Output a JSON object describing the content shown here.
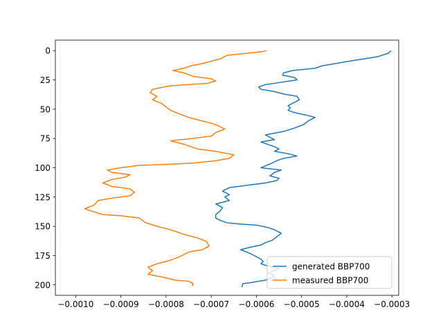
{
  "chart_data": {
    "type": "line",
    "title": "",
    "xlabel": "",
    "ylabel": "",
    "xlim": [
      -0.001045,
      -0.000285
    ],
    "ylim": [
      209,
      -9
    ],
    "y_inverted": true,
    "grid": false,
    "legend_position": "lower-right",
    "x_ticks": [
      -0.001,
      -0.0009,
      -0.0008,
      -0.0007,
      -0.0006,
      -0.0005,
      -0.0004,
      -0.0003
    ],
    "x_tick_labels": [
      "−0.0010",
      "−0.0009",
      "−0.0008",
      "−0.0007",
      "−0.0006",
      "−0.0005",
      "−0.0004",
      "−0.0003"
    ],
    "y_ticks": [
      0,
      25,
      50,
      75,
      100,
      125,
      150,
      175,
      200
    ],
    "y_tick_labels": [
      "0",
      "25",
      "50",
      "75",
      "100",
      "125",
      "150",
      "175",
      "200"
    ],
    "series": [
      {
        "name": "generated BBP700",
        "color": "#1f77b4",
        "points": [
          [
            -0.000302,
            0
          ],
          [
            -0.000307,
            2
          ],
          [
            -0.00033,
            5
          ],
          [
            -0.000362,
            7
          ],
          [
            -0.000395,
            9
          ],
          [
            -0.000425,
            11
          ],
          [
            -0.000455,
            13
          ],
          [
            -0.00047,
            15
          ],
          [
            -0.00052,
            17
          ],
          [
            -0.00054,
            19
          ],
          [
            -0.000542,
            21
          ],
          [
            -0.000515,
            23
          ],
          [
            -0.00051,
            25
          ],
          [
            -0.000545,
            27
          ],
          [
            -0.00058,
            29
          ],
          [
            -0.000595,
            31
          ],
          [
            -0.00059,
            33
          ],
          [
            -0.00056,
            35
          ],
          [
            -0.00054,
            37
          ],
          [
            -0.00051,
            39
          ],
          [
            -0.000505,
            42
          ],
          [
            -0.00052,
            45
          ],
          [
            -0.00053,
            47
          ],
          [
            -0.000525,
            49
          ],
          [
            -0.00053,
            51
          ],
          [
            -0.000515,
            53
          ],
          [
            -0.00049,
            55
          ],
          [
            -0.00047,
            57
          ],
          [
            -0.000485,
            60
          ],
          [
            -0.000495,
            63
          ],
          [
            -0.000515,
            66
          ],
          [
            -0.00054,
            69
          ],
          [
            -0.00058,
            72
          ],
          [
            -0.00056,
            76
          ],
          [
            -0.00059,
            78
          ],
          [
            -0.000575,
            80
          ],
          [
            -0.00056,
            82
          ],
          [
            -0.00055,
            84
          ],
          [
            -0.00056,
            86
          ],
          [
            -0.00053,
            88
          ],
          [
            -0.00051,
            90
          ],
          [
            -0.00054,
            92
          ],
          [
            -0.000555,
            94
          ],
          [
            -0.000565,
            96
          ],
          [
            -0.00059,
            100
          ],
          [
            -0.000545,
            102
          ],
          [
            -0.00056,
            104
          ],
          [
            -0.00057,
            107
          ],
          [
            -0.00055,
            109
          ],
          [
            -0.000555,
            111
          ],
          [
            -0.00058,
            113
          ],
          [
            -0.00062,
            115
          ],
          [
            -0.00066,
            117
          ],
          [
            -0.000675,
            120
          ],
          [
            -0.00066,
            123
          ],
          [
            -0.00067,
            125
          ],
          [
            -0.00066,
            128
          ],
          [
            -0.00069,
            131
          ],
          [
            -0.000675,
            134
          ],
          [
            -0.00068,
            137
          ],
          [
            -0.00069,
            140
          ],
          [
            -0.00069,
            143
          ],
          [
            -0.00068,
            145
          ],
          [
            -0.000665,
            147
          ],
          [
            -0.00064,
            148
          ],
          [
            -0.0006,
            149
          ],
          [
            -0.000575,
            151
          ],
          [
            -0.00056,
            153
          ],
          [
            -0.000545,
            156
          ],
          [
            -0.000555,
            159
          ],
          [
            -0.000565,
            162
          ],
          [
            -0.00058,
            164
          ],
          [
            -0.00059,
            166
          ],
          [
            -0.000615,
            168
          ],
          [
            -0.000635,
            170
          ],
          [
            -0.000615,
            173
          ],
          [
            -0.0006,
            176
          ],
          [
            -0.00059,
            178
          ],
          [
            -0.000585,
            180
          ],
          [
            -0.00059,
            182
          ],
          [
            -0.000575,
            184
          ],
          [
            -0.00055,
            186
          ],
          [
            -0.00056,
            188
          ],
          [
            -0.000575,
            190
          ],
          [
            -0.00056,
            192
          ],
          [
            -0.000565,
            194
          ],
          [
            -0.00058,
            196
          ],
          [
            -0.00061,
            198
          ],
          [
            -0.00063,
            199
          ],
          [
            -0.000632,
            202
          ]
        ]
      },
      {
        "name": "measured BBP700",
        "color": "#ff7f0e",
        "points": [
          [
            -0.000578,
            0
          ],
          [
            -0.00059,
            1
          ],
          [
            -0.000615,
            2
          ],
          [
            -0.000665,
            4
          ],
          [
            -0.00068,
            7
          ],
          [
            -0.0007,
            9
          ],
          [
            -0.00072,
            11
          ],
          [
            -0.000745,
            13
          ],
          [
            -0.00076,
            15
          ],
          [
            -0.000785,
            17
          ],
          [
            -0.00076,
            19
          ],
          [
            -0.00074,
            22
          ],
          [
            -0.0007,
            24
          ],
          [
            -0.00069,
            26
          ],
          [
            -0.00071,
            28
          ],
          [
            -0.00079,
            30
          ],
          [
            -0.00083,
            33
          ],
          [
            -0.000835,
            36
          ],
          [
            -0.00082,
            39
          ],
          [
            -0.00083,
            42
          ],
          [
            -0.00081,
            45
          ],
          [
            -0.0008,
            48
          ],
          [
            -0.00079,
            51
          ],
          [
            -0.00077,
            54
          ],
          [
            -0.00075,
            57
          ],
          [
            -0.00073,
            59
          ],
          [
            -0.0007,
            62
          ],
          [
            -0.000685,
            64
          ],
          [
            -0.00067,
            67
          ],
          [
            -0.00069,
            70
          ],
          [
            -0.0007,
            73
          ],
          [
            -0.00074,
            75
          ],
          [
            -0.00079,
            77
          ],
          [
            -0.00076,
            80
          ],
          [
            -0.000745,
            82
          ],
          [
            -0.00073,
            84
          ],
          [
            -0.00069,
            86
          ],
          [
            -0.00065,
            89
          ],
          [
            -0.00066,
            92
          ],
          [
            -0.00069,
            94
          ],
          [
            -0.00074,
            96
          ],
          [
            -0.00079,
            97
          ],
          [
            -0.00086,
            98
          ],
          [
            -0.0009,
            100
          ],
          [
            -0.00093,
            102
          ],
          [
            -0.00092,
            104
          ],
          [
            -0.00088,
            106
          ],
          [
            -0.00089,
            108
          ],
          [
            -0.00092,
            110
          ],
          [
            -0.00094,
            113
          ],
          [
            -0.00092,
            116
          ],
          [
            -0.00088,
            118
          ],
          [
            -0.00087,
            121
          ],
          [
            -0.00088,
            124
          ],
          [
            -0.00092,
            126
          ],
          [
            -0.00095,
            128
          ],
          [
            -0.00096,
            132
          ],
          [
            -0.00098,
            135
          ],
          [
            -0.000965,
            137
          ],
          [
            -0.00094,
            140
          ],
          [
            -0.0009,
            141
          ],
          [
            -0.00086,
            143
          ],
          [
            -0.000845,
            147
          ],
          [
            -0.00082,
            150
          ],
          [
            -0.00079,
            153
          ],
          [
            -0.00076,
            157
          ],
          [
            -0.00073,
            160
          ],
          [
            -0.00071,
            163
          ],
          [
            -0.000705,
            167
          ],
          [
            -0.00072,
            170
          ],
          [
            -0.00075,
            172
          ],
          [
            -0.00077,
            176
          ],
          [
            -0.00079,
            179
          ],
          [
            -0.00082,
            182
          ],
          [
            -0.00084,
            185
          ],
          [
            -0.00083,
            188
          ],
          [
            -0.00084,
            191
          ],
          [
            -0.0008,
            194
          ],
          [
            -0.00078,
            196
          ],
          [
            -0.00075,
            197
          ],
          [
            -0.00074,
            199
          ],
          [
            -0.000742,
            201
          ]
        ]
      }
    ]
  }
}
